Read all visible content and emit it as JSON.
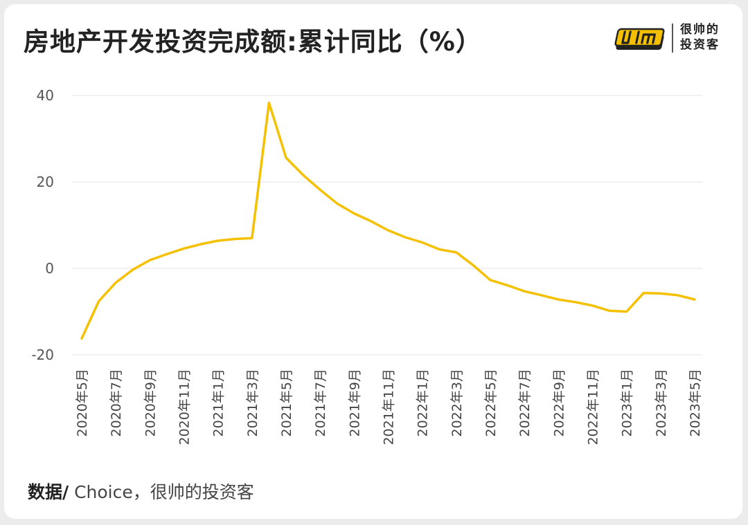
{
  "title": "房地产开发投资完成额:累计同比（%）",
  "brand": {
    "line1": "很帅的",
    "line2": "投资客"
  },
  "source": {
    "label": "数据/",
    "text": " Choice，很帅的投资客"
  },
  "colors": {
    "line": "#F5C000",
    "grid": "#e3e3e3",
    "text": "#555555"
  },
  "chart_data": {
    "type": "line",
    "ylim": [
      -20,
      40
    ],
    "yticks": [
      40,
      20,
      0,
      -20
    ],
    "xtick_labels": [
      "2020年5月",
      "2020年7月",
      "2020年9月",
      "2020年11月",
      "2021年1月",
      "2021年3月",
      "2021年5月",
      "2021年7月",
      "2021年9月",
      "2021年11月",
      "2022年1月",
      "2022年3月",
      "2022年5月",
      "2022年7月",
      "2022年9月",
      "2022年11月",
      "2023年1月",
      "2023年3月",
      "2023年5月"
    ],
    "x": [
      "2020年5月",
      "2020年6月",
      "2020年7月",
      "2020年8月",
      "2020年9月",
      "2020年10月",
      "2020年11月",
      "2020年12月",
      "2021年1月",
      "2021年2月",
      "2021年3月",
      "2021年4月",
      "2021年5月",
      "2021年6月",
      "2021年7月",
      "2021年8月",
      "2021年9月",
      "2021年10月",
      "2021年11月",
      "2021年12月",
      "2022年1月",
      "2022年2月",
      "2022年3月",
      "2022年4月",
      "2022年5月",
      "2022年6月",
      "2022年7月",
      "2022年8月",
      "2022年9月",
      "2022年10月",
      "2022年11月",
      "2022年12月",
      "2023年1月",
      "2023年2月",
      "2023年3月",
      "2023年4月",
      "2023年5月"
    ],
    "series": [
      {
        "values": [
          -16.2,
          -7.6,
          -3.3,
          -0.3,
          1.9,
          3.3,
          4.6,
          5.6,
          6.4,
          6.8,
          7.0,
          38.3,
          25.6,
          21.6,
          18.2,
          15.0,
          12.7,
          10.9,
          8.8,
          7.2,
          6.0,
          4.4,
          3.7,
          0.7,
          -2.7,
          -3.9,
          -5.3,
          -6.2,
          -7.2,
          -7.8,
          -8.6,
          -9.8,
          -10.0,
          -5.7,
          -5.8,
          -6.2,
          -7.2
        ]
      }
    ]
  }
}
